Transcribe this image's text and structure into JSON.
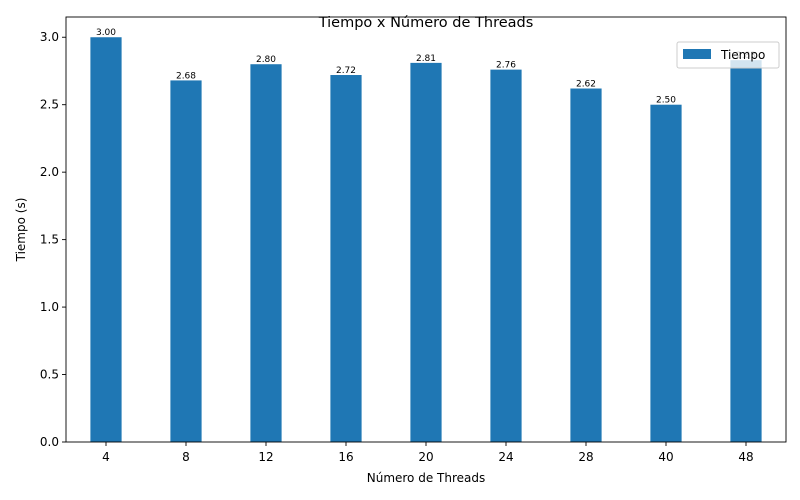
{
  "chart_data": {
    "type": "bar",
    "title": "Tiempo x Número de Threads",
    "xlabel": "Número de Threads",
    "ylabel": "Tiempo (s)",
    "categories": [
      "4",
      "8",
      "12",
      "16",
      "20",
      "24",
      "28",
      "40",
      "48"
    ],
    "series": [
      {
        "name": "Tiempo",
        "values": [
          3.0,
          2.68,
          2.8,
          2.72,
          2.81,
          2.76,
          2.62,
          2.5,
          2.83
        ],
        "value_labels": [
          "3.00",
          "2.68",
          "2.80",
          "2.72",
          "2.81",
          "2.76",
          "2.62",
          "2.50",
          "2.83"
        ]
      }
    ],
    "ylim": [
      0,
      3.15
    ],
    "yticks": [
      "0.0",
      "0.5",
      "1.0",
      "1.5",
      "2.0",
      "2.5",
      "3.0"
    ],
    "grid": false,
    "legend": "top-right",
    "colors": {
      "bar": "#1f77b4"
    }
  }
}
